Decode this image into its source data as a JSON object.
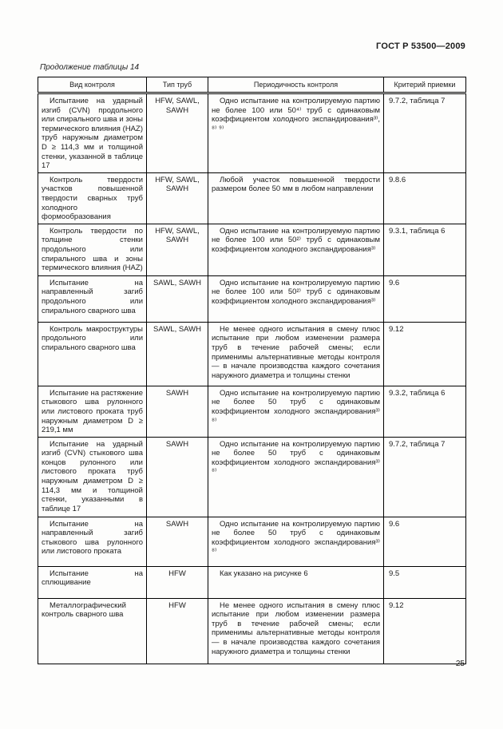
{
  "page": {
    "doc_number": "ГОСТ Р 53500—2009",
    "table_caption": "Продолжение таблицы 14",
    "page_number": "25"
  },
  "table": {
    "headers": {
      "control_type": "Вид контроля",
      "pipe_type": "Тип труб",
      "frequency": "Периодичность контроля",
      "criterion": "Критерий приемки"
    },
    "rows": [
      {
        "kind": "Испытание на ударный изгиб (CVN) продольного или спирального шва и зоны термического влияния (HAZ) труб наружным диаметром D ≥ 114,3 мм и толщиной стенки, указанной в таблице 17",
        "pipe": "HFW, SAWL, SAWH",
        "freq": "Одно испытание на контролируемую партию не более 100 или 50⁴⁾ труб с одинаковым коэффициентом холодного экспандирования³⁾, ⁸⁾ ⁹⁾",
        "crit": "9.7.2, таблица 7"
      },
      {
        "kind": "Контроль твердости участков повышенной твердости сварных труб холодного формообразования",
        "pipe": "HFW, SAWL, SAWH",
        "freq": "Любой участок повышенной твердости размером более 50 мм в любом направлении",
        "crit": "9.8.6"
      },
      {
        "kind": "Контроль твердости по толщине стенки продольного или спирального шва и зоны термического влияния (HAZ)",
        "pipe": "HFW, SAWL, SAWH",
        "freq": "Одно испытание на контролируемую партию не более 100 или 50²⁾ труб с одинаковым коэффициентом холодного экспандирования³⁾",
        "crit": "9.3.1, таблица 6"
      },
      {
        "kind": "Испытание на направленный загиб продольного или спирального сварного шва",
        "pipe": "SAWL, SAWH",
        "freq": "Одно испытание на контролируемую партию не более 100 или 50²⁾ труб с одинаковым коэффициентом холодного экспандирования³⁾",
        "crit": "9.6"
      },
      {
        "kind": "Контроль макроструктуры продольного или спирального сварного шва",
        "pipe": "SAWL, SAWH",
        "freq": "Не менее одного испытания в смену плюс испытание при любом изменении размера труб в течение рабочей смены; если применимы альтернативные методы контроля — в начале производства каждого сочетания наружного диаметра и толщины стенки",
        "crit": "9.12"
      },
      {
        "kind": "Испытание на растяжение стыкового шва рулонного или листового проката труб наружным диаметром D ≥ 219,1 мм",
        "pipe": "SAWH",
        "freq": "Одно испытание на контролируемую партию не более 50 труб с одинаковым коэффициентом холодного экспандирования³⁾ ⁸⁾",
        "crit": "9.3.2, таблица 6"
      },
      {
        "kind": "Испытание на ударный изгиб (CVN) стыкового шва концов рулонного или листового проката труб наружным диаметром D ≥ 114,3 мм и толщиной стенки, указанными в таблице 17",
        "pipe": "SAWH",
        "freq": "Одно испытание на контролируемую партию не более 50 труб с одинаковым коэффициентом холодного экспандирования³⁾ ⁸⁾",
        "crit": "9.7.2, таблица 7"
      },
      {
        "kind": "Испытание на направленный загиб стыкового шва рулонного или листового проката",
        "pipe": "SAWH",
        "freq": "Одно испытание на контролируемую партию не более 50 труб с одинаковым коэффициентом холодного экспандирования³⁾ ⁸⁾",
        "crit": "9.6"
      },
      {
        "kind": "Испытание на сплющивание",
        "pipe": "HFW",
        "freq": "Как указано на рисунке 6",
        "crit": "9.5"
      },
      {
        "kind": "Металлографический контроль сварного шва",
        "pipe": "HFW",
        "freq": "Не менее одного испытания в смену плюс испытание при любом изменении размера труб в течение рабочей смены; если применимы альтернативные методы контроля — в начале производства каждого сочетания наружного диаметра и толщины стенки",
        "crit": "9.12"
      }
    ]
  }
}
